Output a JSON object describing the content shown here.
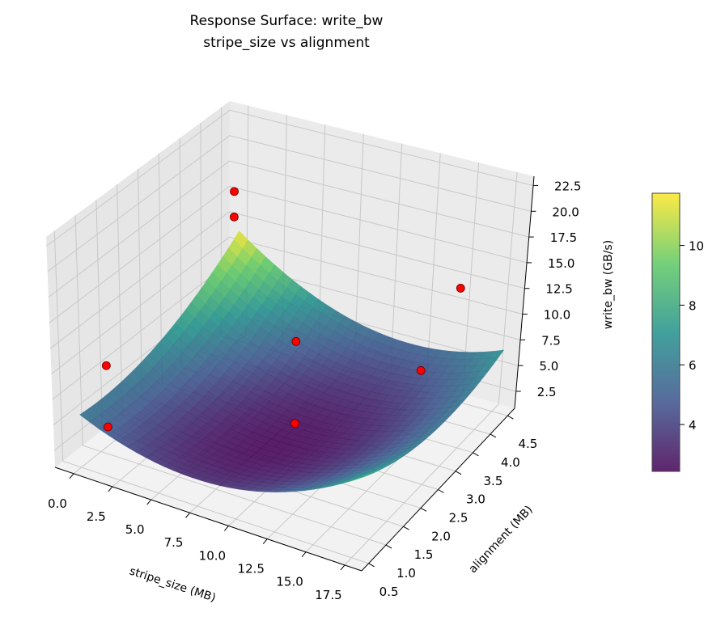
{
  "chart_data": {
    "type": "surface3d",
    "title": "Response Surface: write_bw",
    "subtitle": "stripe_size vs alignment",
    "xlabel": "stripe_size (MB)",
    "ylabel": "alignment (MB)",
    "zlabel": "write_bw (GB/s)",
    "xlim": [
      -1.2,
      18.6
    ],
    "ylim": [
      0.3,
      4.7
    ],
    "zlim": [
      0.85,
      23.4
    ],
    "xticks": [
      "0.0",
      "2.5",
      "5.0",
      "7.5",
      "10.0",
      "12.5",
      "15.0",
      "17.5"
    ],
    "yticks": [
      "0.5",
      "1.0",
      "1.5",
      "2.0",
      "2.5",
      "3.0",
      "3.5",
      "4.0",
      "4.5"
    ],
    "zticks": [
      "2.5",
      "5.0",
      "7.5",
      "10.0",
      "12.5",
      "15.0",
      "17.5",
      "20.0",
      "22.5"
    ],
    "surface_model": {
      "z0": 2.5,
      "x0": 9,
      "y0": 2,
      "a": 0.047,
      "b": 0.485,
      "c": -0.104,
      "x_range": [
        0,
        18
      ],
      "y_range": [
        0.5,
        4.5
      ]
    },
    "colormap": "viridis",
    "points": [
      {
        "x": 1,
        "y": 4.0,
        "z": 17.5
      },
      {
        "x": 1,
        "y": 4.0,
        "z": 15.0
      },
      {
        "x": 0.5,
        "y": 1.0,
        "z": 9.5
      },
      {
        "x": 0.5,
        "y": 1.0,
        "z": 3.5
      },
      {
        "x": 9,
        "y": 2.5,
        "z": 11.0
      },
      {
        "x": 9,
        "y": 2.5,
        "z": 3.0
      },
      {
        "x": 16,
        "y": 4.0,
        "z": 14.0
      },
      {
        "x": 16,
        "y": 3.0,
        "z": 9.5
      }
    ],
    "point_color": "#ff0000",
    "colorbar": {
      "min": 2.43,
      "max": 11.75,
      "ticks": [
        "4",
        "6",
        "8",
        "10"
      ]
    }
  }
}
